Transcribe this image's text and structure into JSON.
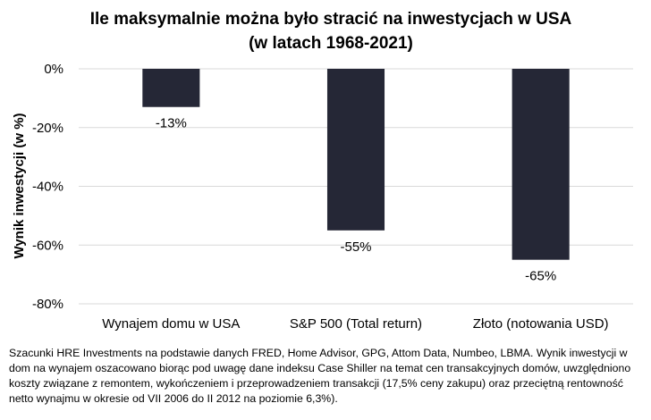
{
  "chart_data": {
    "type": "bar",
    "title": "Ile maksymalnie można było stracić na inwestycjach w USA",
    "subtitle": "(w latach 1968-2021)",
    "ylabel": "Wynik inwestycji (w %)",
    "xlabel": "",
    "categories": [
      "Wynajem domu w USA",
      "S&P 500 (Total return)",
      "Złoto (notowania USD)"
    ],
    "values": [
      -13,
      -55,
      -65
    ],
    "data_labels": [
      "-13%",
      "-55%",
      "-65%"
    ],
    "ylim": [
      -80,
      0
    ],
    "yticks": [
      0,
      -20,
      -40,
      -60,
      -80
    ],
    "ytick_labels": [
      "0%",
      "-20%",
      "-40%",
      "-60%",
      "-80%"
    ],
    "grid": true,
    "legend": "none",
    "bar_color": "#252736",
    "grid_color": "#d9d9d9"
  },
  "footnote": "Szacunki HRE Investments na podstawie danych FRED, Home Advisor, GPG, Attom Data, Numbeo, LBMA. Wynik inwestycji w dom na wynajem oszacowano biorąc pod uwagę dane indeksu Case Shiller na temat cen transakcyjnych domów, uwzględniono koszty związane z remontem, wykończeniem i przeprowadzeniem transakcji (17,5% ceny zakupu) oraz przeciętną rentowność netto wynajmu w okresie od VII 2006 do II 2012 na poziomie 6,3%)."
}
